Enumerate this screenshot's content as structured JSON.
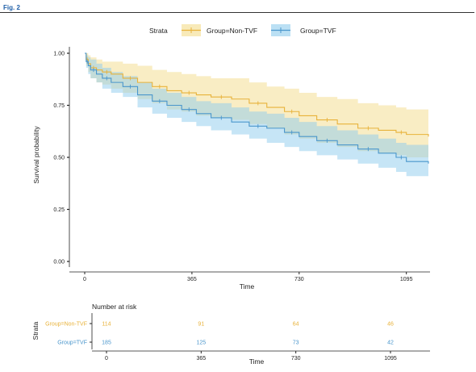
{
  "figure_label": "Fig. 2",
  "chart_data": [
    {
      "type": "line",
      "subtype": "kaplan-meier",
      "title": "",
      "xlabel": "Time",
      "ylabel": "Survival probability",
      "xlim": [
        0,
        1170
      ],
      "ylim": [
        0,
        1.05
      ],
      "x_ticks": [
        0,
        365,
        730,
        1095
      ],
      "y_ticks": [
        0.0,
        0.25,
        0.5,
        0.75,
        1.0
      ],
      "y_tick_labels": [
        "0.00",
        "0.25",
        "0.50",
        "0.75",
        "1.00"
      ],
      "grid": false,
      "legend": {
        "title": "Strata",
        "placement": "top"
      },
      "series": [
        {
          "name": "Group=Non-TVF",
          "color": "#e8b23a",
          "band_color": "#f3dc8a",
          "x": [
            0,
            5,
            12,
            20,
            40,
            60,
            90,
            130,
            180,
            230,
            280,
            330,
            380,
            430,
            500,
            560,
            620,
            680,
            730,
            790,
            860,
            930,
            1000,
            1060,
            1095,
            1170
          ],
          "y": [
            1.0,
            0.97,
            0.95,
            0.93,
            0.92,
            0.91,
            0.9,
            0.88,
            0.86,
            0.84,
            0.82,
            0.81,
            0.8,
            0.79,
            0.78,
            0.76,
            0.74,
            0.72,
            0.7,
            0.68,
            0.66,
            0.64,
            0.63,
            0.62,
            0.61,
            0.6
          ],
          "lower": [
            1.0,
            0.94,
            0.91,
            0.88,
            0.86,
            0.85,
            0.83,
            0.81,
            0.78,
            0.76,
            0.73,
            0.72,
            0.7,
            0.69,
            0.68,
            0.66,
            0.64,
            0.61,
            0.59,
            0.57,
            0.55,
            0.53,
            0.52,
            0.51,
            0.5,
            0.49
          ],
          "upper": [
            1.0,
            1.0,
            0.99,
            0.98,
            0.97,
            0.96,
            0.96,
            0.95,
            0.94,
            0.92,
            0.91,
            0.9,
            0.89,
            0.88,
            0.88,
            0.86,
            0.84,
            0.83,
            0.81,
            0.79,
            0.78,
            0.76,
            0.75,
            0.74,
            0.73,
            0.72
          ]
        },
        {
          "name": "Group=TVF",
          "color": "#4a96cc",
          "band_color": "#8ecbed",
          "x": [
            0,
            5,
            12,
            20,
            40,
            60,
            90,
            130,
            180,
            230,
            280,
            330,
            380,
            430,
            500,
            560,
            620,
            680,
            730,
            790,
            860,
            930,
            1000,
            1060,
            1095,
            1170
          ],
          "y": [
            1.0,
            0.96,
            0.94,
            0.92,
            0.9,
            0.88,
            0.86,
            0.84,
            0.8,
            0.77,
            0.75,
            0.73,
            0.71,
            0.69,
            0.67,
            0.65,
            0.64,
            0.62,
            0.6,
            0.58,
            0.56,
            0.54,
            0.52,
            0.5,
            0.48,
            0.47
          ],
          "lower": [
            1.0,
            0.93,
            0.9,
            0.88,
            0.86,
            0.83,
            0.81,
            0.79,
            0.74,
            0.71,
            0.69,
            0.67,
            0.65,
            0.63,
            0.61,
            0.59,
            0.57,
            0.55,
            0.53,
            0.51,
            0.49,
            0.47,
            0.45,
            0.43,
            0.41,
            0.39
          ],
          "upper": [
            1.0,
            0.99,
            0.98,
            0.97,
            0.95,
            0.93,
            0.91,
            0.89,
            0.86,
            0.83,
            0.81,
            0.79,
            0.77,
            0.76,
            0.74,
            0.72,
            0.71,
            0.69,
            0.67,
            0.65,
            0.63,
            0.61,
            0.59,
            0.57,
            0.56,
            0.55
          ]
        }
      ]
    },
    {
      "type": "table",
      "title": "Number at risk",
      "xlabel": "Time",
      "ylabel": "Strata",
      "x_ticks": [
        0,
        365,
        730,
        1095
      ],
      "rows": [
        {
          "name": "Group=Non-TVF",
          "color": "#e8b23a",
          "values": [
            114,
            91,
            64,
            46
          ]
        },
        {
          "name": "Group=TVF",
          "color": "#4a96cc",
          "values": [
            185,
            125,
            73,
            42
          ]
        }
      ]
    }
  ]
}
